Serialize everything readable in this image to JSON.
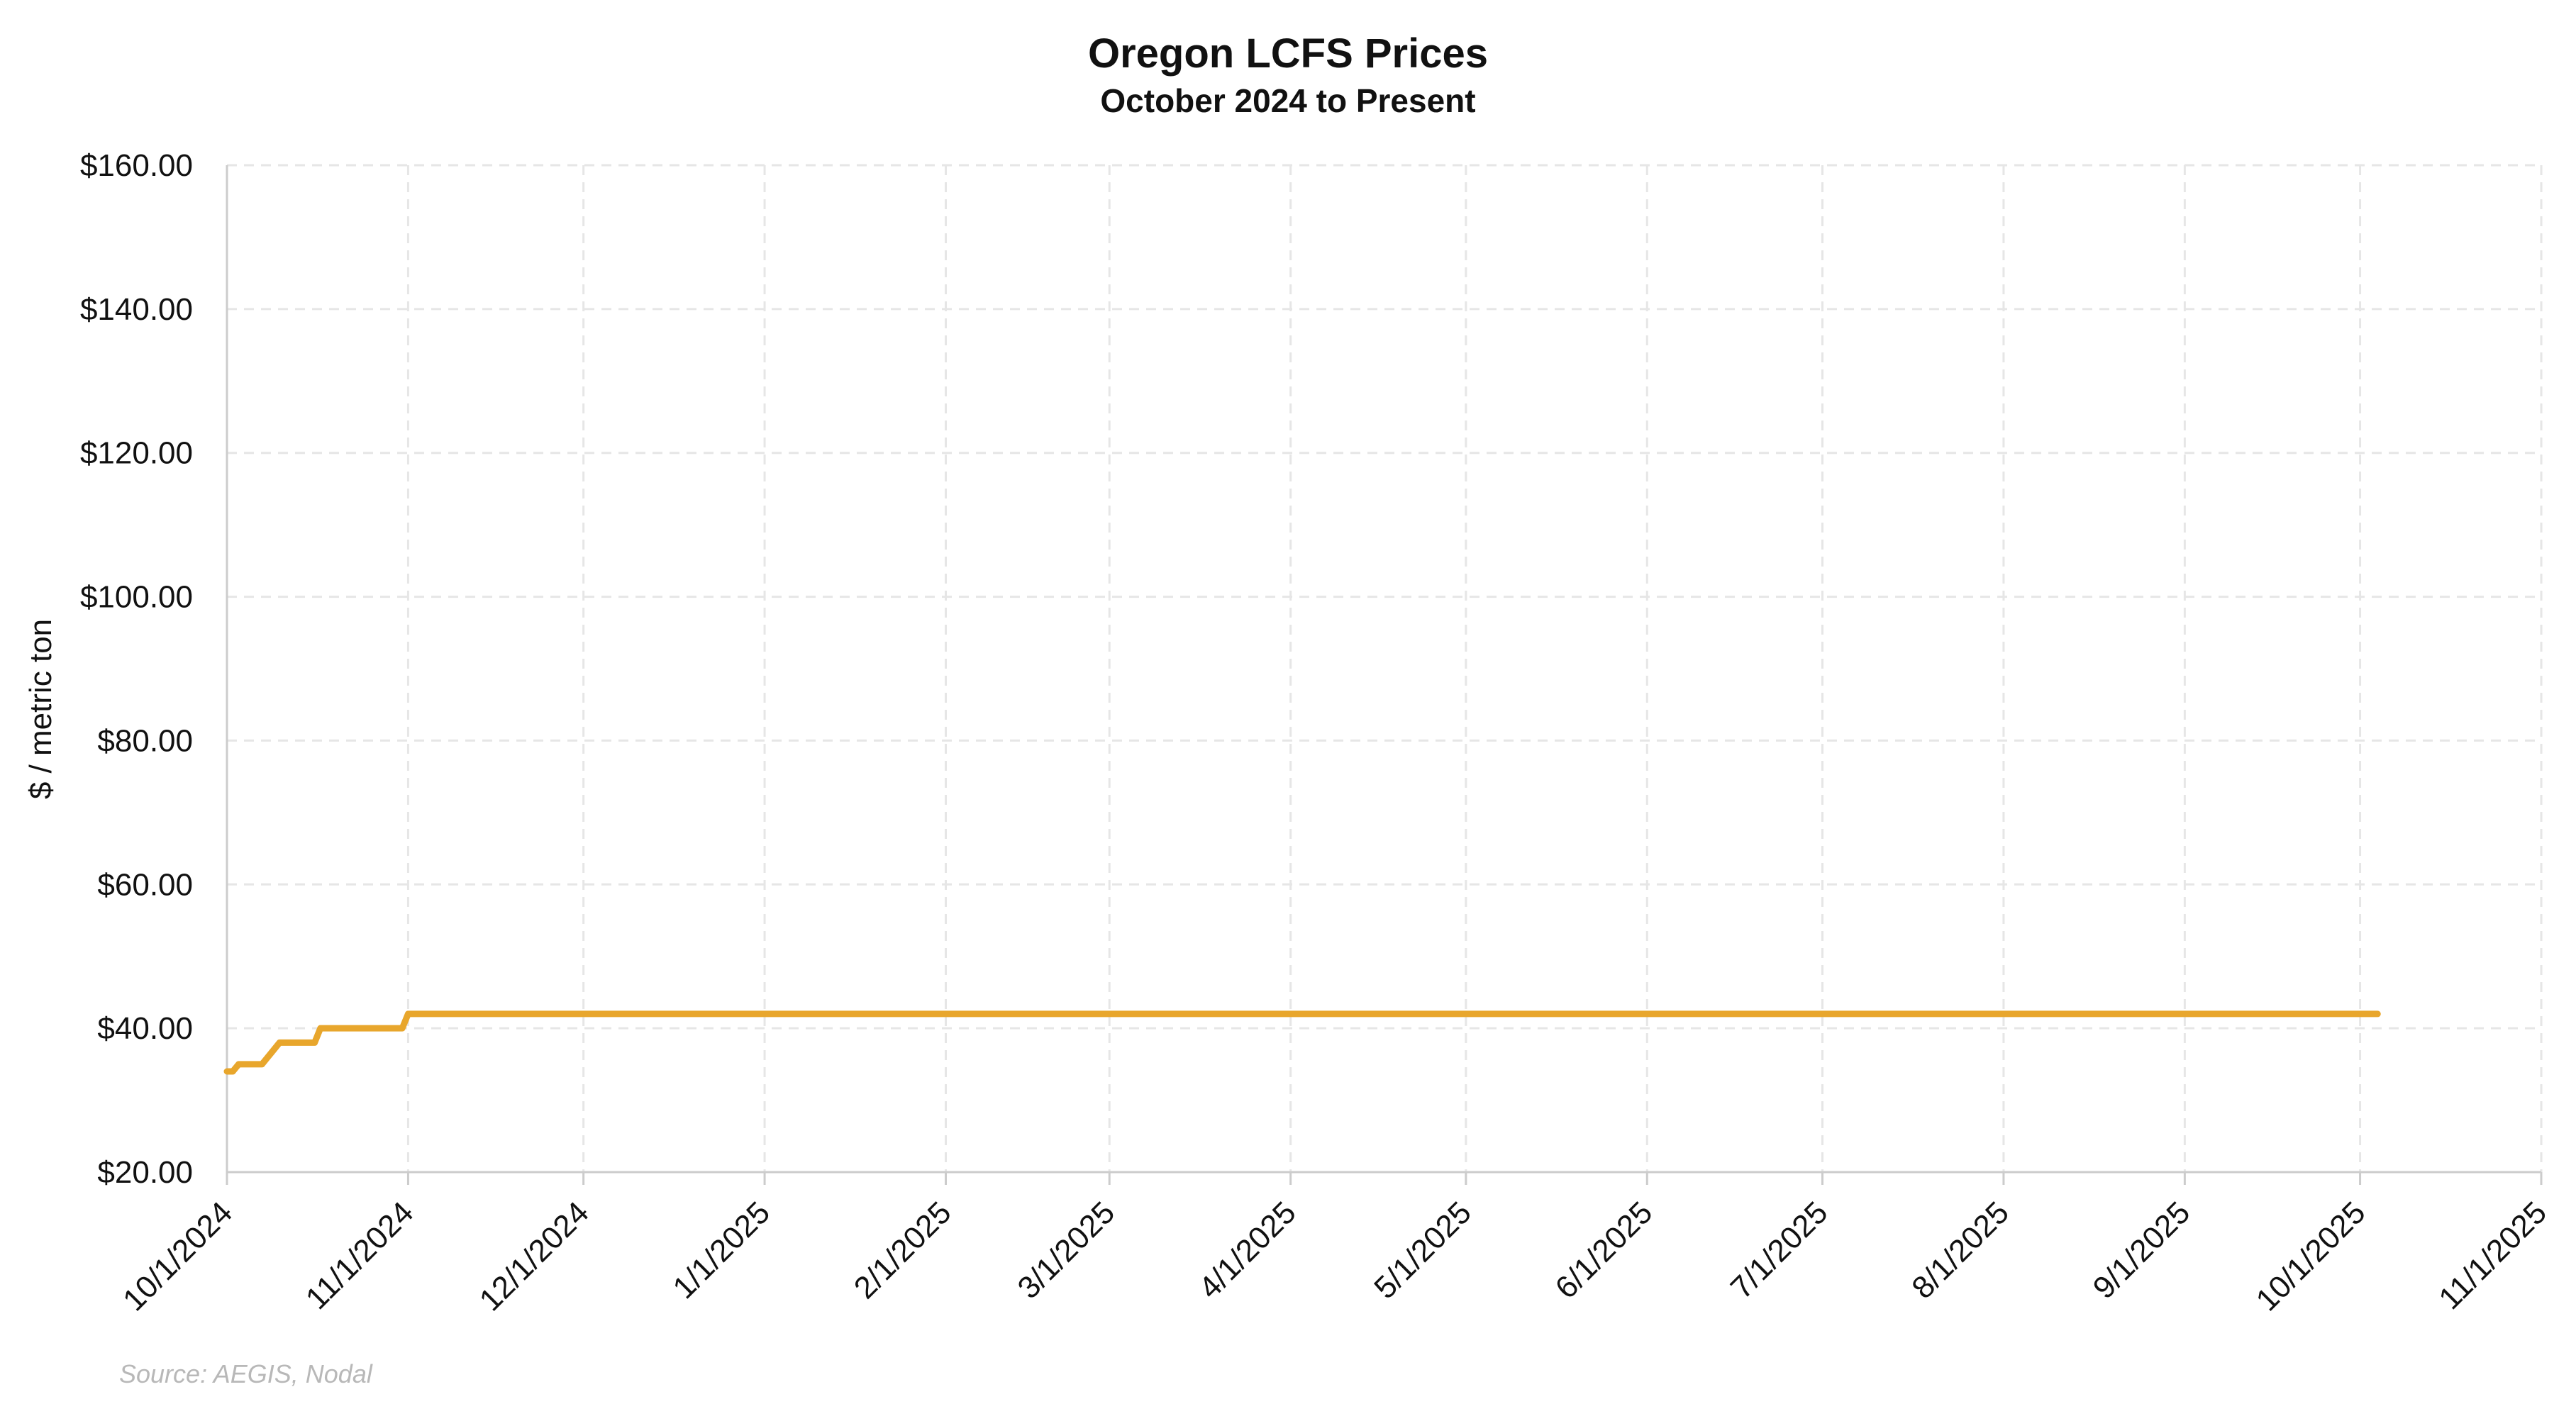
{
  "chart_data": {
    "type": "line",
    "title": "Oregon LCFS Prices",
    "subtitle": "October 2024 to Present",
    "xlabel": "",
    "ylabel": "$ / metric ton",
    "source": "Source: AEGIS, Nodal",
    "ylim": [
      20,
      160
    ],
    "yticks": [
      20,
      40,
      60,
      80,
      100,
      120,
      140,
      160
    ],
    "ytick_labels": [
      "$20.00",
      "$40.00",
      "$60.00",
      "$80.00",
      "$100.00",
      "$120.00",
      "$140.00",
      "$160.00"
    ],
    "xlim_days": [
      0,
      396
    ],
    "xticks_days": [
      0,
      31,
      61,
      92,
      123,
      151,
      182,
      212,
      243,
      273,
      304,
      335,
      365,
      396
    ],
    "xtick_labels": [
      "10/1/2024",
      "11/1/2024",
      "12/1/2024",
      "1/1/2025",
      "2/1/2025",
      "3/1/2025",
      "4/1/2025",
      "5/1/2025",
      "6/1/2025",
      "7/1/2025",
      "8/1/2025",
      "9/1/2025",
      "10/1/2025",
      "11/1/2025"
    ],
    "grid": true,
    "line_color": "#e8a62c",
    "series": [
      {
        "name": "Oregon LCFS Price",
        "x_days": [
          0,
          1,
          2,
          6,
          8,
          9,
          15,
          16,
          18,
          19,
          23,
          24,
          27,
          28,
          30,
          31,
          33,
          37,
          40,
          41,
          42,
          44,
          45,
          47,
          48,
          50,
          52,
          55,
          63,
          64,
          68,
          69,
          71,
          74,
          75,
          78,
          81,
          83,
          87,
          93,
          96,
          98,
          100,
          101,
          103,
          106,
          107,
          109,
          112,
          113,
          115,
          116,
          118,
          120,
          122,
          124,
          125,
          126,
          127,
          128,
          129,
          130,
          133,
          134,
          135,
          136,
          139,
          140,
          141,
          142,
          145,
          147,
          153,
          154,
          155,
          158,
          163,
          168,
          170,
          172,
          173,
          175,
          176,
          177,
          178,
          179,
          180,
          181,
          182,
          183,
          185,
          186,
          187,
          189,
          190,
          191,
          192,
          193,
          194,
          195,
          197,
          199,
          200,
          202,
          203,
          204,
          205,
          207,
          210,
          220,
          222,
          224,
          225,
          230,
          232,
          235,
          236,
          237,
          238,
          240,
          241,
          242,
          243,
          244,
          245,
          247,
          248,
          249,
          250,
          252,
          253,
          254,
          256,
          261,
          263,
          264,
          266,
          269,
          272,
          274,
          275,
          277,
          279,
          280,
          281,
          282,
          284,
          285,
          286,
          287,
          289,
          291,
          292,
          293,
          295,
          296,
          297,
          298,
          299,
          300,
          302,
          303,
          304,
          305,
          306,
          308,
          309,
          310,
          311,
          312,
          313,
          314,
          315,
          316,
          317,
          318,
          320,
          321,
          322,
          323,
          326,
          329,
          330,
          332,
          334,
          335,
          337,
          338,
          340,
          341,
          342,
          343,
          345,
          346,
          347,
          348,
          349,
          350,
          351,
          352,
          353,
          355,
          356,
          357,
          360,
          361,
          362,
          365,
          366,
          367,
          368
        ],
        "values": [
          34,
          34,
          35,
          35,
          37,
          38,
          38,
          40,
          40,
          40,
          40,
          40,
          40,
          40,
          40,
          42,
          42,
          42,
          42,
          42,
          42,
          42,
          42,
          42,
          42,
          42,
          42,
          42,
          42,
          42,
          42,
          42,
          42,
          42,
          42,
          42,
          42,
          42,
          42,
          42,
          42,
          42,
          42,
          42,
          42,
          42,
          42,
          42,
          42,
          42,
          42,
          42,
          42,
          42,
          42,
          42,
          42,
          42,
          42,
          42,
          42,
          42,
          42,
          42,
          42,
          42,
          42,
          42,
          42,
          42,
          42,
          42,
          42,
          42,
          42,
          42,
          42,
          42,
          42,
          42,
          42,
          42,
          42,
          42,
          42,
          42,
          42,
          42,
          42,
          42,
          42,
          42,
          42,
          42,
          42,
          42,
          42,
          42,
          42,
          42,
          42,
          42,
          42,
          42,
          42,
          42,
          42,
          42,
          42,
          42,
          42,
          42,
          42,
          42,
          42,
          42,
          42,
          42,
          42,
          42,
          42,
          42,
          42,
          42,
          42,
          42,
          42,
          42,
          42,
          42,
          42,
          42,
          42,
          42,
          42,
          42,
          42,
          42,
          42,
          42,
          42,
          42,
          42,
          42,
          42,
          42,
          42,
          42,
          42,
          42,
          42,
          42,
          42,
          42,
          42,
          42,
          42,
          42,
          42,
          42,
          42,
          42,
          42,
          42,
          42,
          42,
          42,
          42,
          42,
          42,
          42,
          42,
          42,
          42,
          42,
          42,
          42,
          42,
          42,
          42,
          42,
          42,
          42,
          42,
          42,
          42,
          42,
          42,
          42,
          42,
          42,
          42,
          42,
          42,
          42,
          42,
          42,
          42,
          42,
          42,
          42,
          42,
          42,
          42,
          42,
          42,
          42,
          42,
          42,
          42,
          42
        ]
      }
    ]
  }
}
